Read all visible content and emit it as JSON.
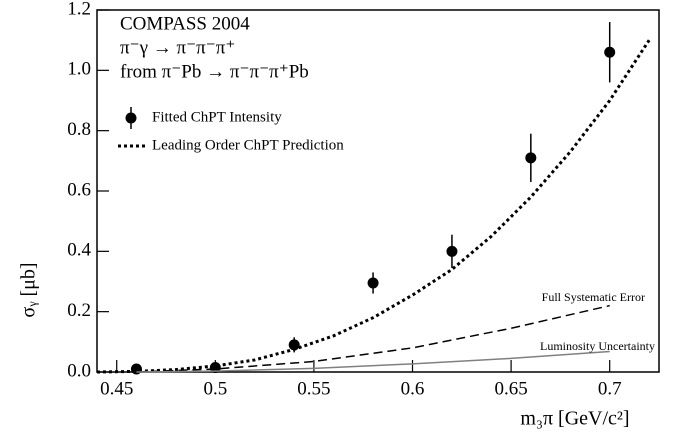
{
  "chart_data": {
    "type": "scatter",
    "title_lines": [
      "COMPASS 2004",
      "π⁻γ → π⁻π⁻π⁺",
      "from π⁻Pb → π⁻π⁻π⁺Pb"
    ],
    "x_label": "m₃π [GeV/c²]",
    "y_label": "σᵧ [μb]",
    "xlim": [
      0.44,
      0.725
    ],
    "ylim": [
      0,
      1.2
    ],
    "xticks": [
      0.45,
      0.5,
      0.55,
      0.6,
      0.65,
      0.7
    ],
    "yticks": [
      {
        "value": 0,
        "label": "0.0"
      },
      0.2,
      0.4,
      0.6,
      0.8,
      {
        "value": 1,
        "label": "1.0"
      },
      1.2
    ],
    "series": [
      {
        "name": "Fitted ChPT Intensity",
        "style": "points",
        "in_legend": true,
        "color": "#000000",
        "x": [
          0.46,
          0.5,
          0.54,
          0.58,
          0.62,
          0.66,
          0.7
        ],
        "values": [
          0.01,
          0.015,
          0.09,
          0.295,
          0.4,
          0.71,
          1.06
        ],
        "errors": [
          0.005,
          0.005,
          0.025,
          0.035,
          0.055,
          0.08,
          0.1
        ]
      },
      {
        "name": "Leading Order ChPT Prediction",
        "style": "dotted",
        "in_legend": true,
        "color": "#000000",
        "x": [
          0.44,
          0.46,
          0.48,
          0.5,
          0.52,
          0.54,
          0.56,
          0.58,
          0.6,
          0.62,
          0.64,
          0.66,
          0.68,
          0.7,
          0.72
        ],
        "values": [
          0,
          0.002,
          0.008,
          0.02,
          0.04,
          0.075,
          0.12,
          0.18,
          0.255,
          0.34,
          0.45,
          0.58,
          0.73,
          0.9,
          1.1
        ]
      },
      {
        "name": "Full Systematic Error",
        "style": "dashed",
        "in_legend": false,
        "color": "#000000",
        "x": [
          0.46,
          0.5,
          0.55,
          0.6,
          0.65,
          0.7
        ],
        "values": [
          0,
          0.01,
          0.035,
          0.08,
          0.145,
          0.22
        ]
      },
      {
        "name": "Luminosity Uncertainty",
        "style": "solid",
        "in_legend": false,
        "color": "#808080",
        "x": [
          0.46,
          0.5,
          0.55,
          0.6,
          0.65,
          0.7
        ],
        "values": [
          0,
          0.003,
          0.012,
          0.027,
          0.045,
          0.068
        ]
      }
    ]
  }
}
